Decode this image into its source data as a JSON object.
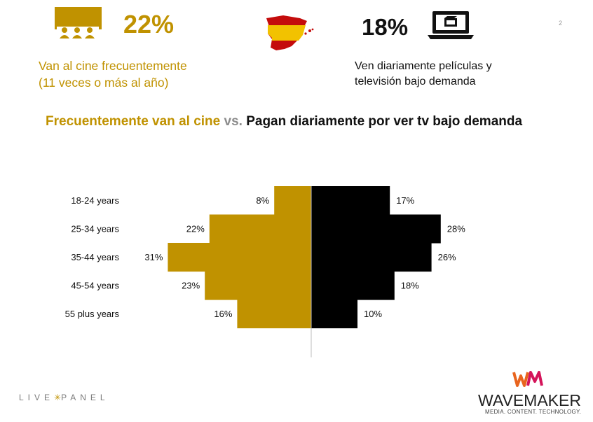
{
  "header": {
    "left_stat": {
      "value": "22%",
      "icon": "cinema-audience-icon",
      "description": [
        "Van al cine frecuentemente",
        "(11 veces o más al año)"
      ]
    },
    "right_stat": {
      "value": "18%",
      "icon": "laptop-video-icon",
      "description": [
        "Ven diariamente películas y",
        "televisión bajo demanda"
      ]
    },
    "map_icon": "spain-flag-map-icon",
    "page_number": "2"
  },
  "title": {
    "part1": "Frecuentemente van al cine",
    "part2": " vs. ",
    "part3": "Pagan diariamente por ver tv bajo demanda"
  },
  "colors": {
    "gold": "#C09200",
    "black": "#000000",
    "grey": "#8C8C8C"
  },
  "chart_data": {
    "type": "bar",
    "orientation": "horizontal-diverging",
    "categories": [
      "18-24 years",
      "25-34 years",
      "35-44 years",
      "45-54 years",
      "55 plus years"
    ],
    "series": [
      {
        "values": [
          8,
          22,
          31,
          23,
          16
        ],
        "labels": [
          "8%",
          "22%",
          "31%",
          "23%",
          "16%"
        ],
        "color": "#C09200"
      },
      {
        "values": [
          17,
          28,
          26,
          18,
          10
        ],
        "labels": [
          "17%",
          "28%",
          "26%",
          "18%",
          "10%"
        ],
        "color": "#000000"
      }
    ]
  },
  "footer": {
    "left_logo_parts": [
      "LIVE",
      "PANEL"
    ],
    "right_logo": {
      "name": "WAVEMAKER",
      "tagline": "MEDIA. CONTENT. TECHNOLOGY."
    }
  }
}
